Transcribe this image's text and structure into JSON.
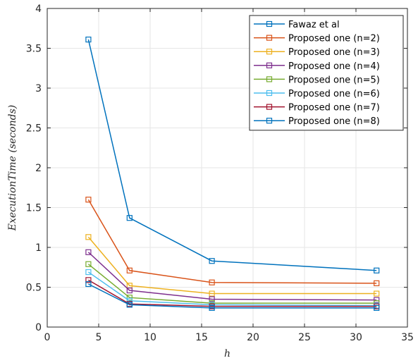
{
  "chart_data": {
    "type": "line",
    "title": "",
    "xlabel": "h",
    "ylabel": "ExecutionTime (seconds)",
    "xlim": [
      0,
      35
    ],
    "ylim": [
      0,
      4
    ],
    "xticks": [
      0,
      5,
      10,
      15,
      20,
      25,
      30,
      35
    ],
    "yticks": [
      0,
      0.5,
      1,
      1.5,
      2,
      2.5,
      3,
      3.5,
      4
    ],
    "xtick_labels": [
      "0",
      "5",
      "10",
      "15",
      "20",
      "25",
      "30",
      "35"
    ],
    "ytick_labels": [
      "0",
      "0.5",
      "1",
      "1.5",
      "2",
      "2.5",
      "3",
      "3.5",
      "4"
    ],
    "grid": true,
    "marker": "square",
    "legend_position": "top-right",
    "x": [
      4,
      8,
      16,
      32
    ],
    "series": [
      {
        "name": "Fawaz et al",
        "color": "#0072BD",
        "values": [
          3.61,
          1.37,
          0.83,
          0.71
        ]
      },
      {
        "name": "Proposed one (n=2)",
        "color": "#D95319",
        "values": [
          1.6,
          0.71,
          0.56,
          0.55
        ]
      },
      {
        "name": "Proposed one (n=3)",
        "color": "#EDB120",
        "values": [
          1.13,
          0.52,
          0.42,
          0.42
        ]
      },
      {
        "name": "Proposed one (n=4)",
        "color": "#7E2F8E",
        "values": [
          0.94,
          0.46,
          0.35,
          0.34
        ]
      },
      {
        "name": "Proposed one (n=5)",
        "color": "#77AC30",
        "values": [
          0.79,
          0.37,
          0.3,
          0.3
        ]
      },
      {
        "name": "Proposed one (n=6)",
        "color": "#4DBEEE",
        "values": [
          0.69,
          0.33,
          0.28,
          0.27
        ]
      },
      {
        "name": "Proposed one (n=7)",
        "color": "#A2142F",
        "values": [
          0.59,
          0.29,
          0.26,
          0.26
        ]
      },
      {
        "name": "Proposed one (n=8)",
        "color": "#0072BD",
        "values": [
          0.54,
          0.28,
          0.24,
          0.24
        ]
      }
    ]
  }
}
